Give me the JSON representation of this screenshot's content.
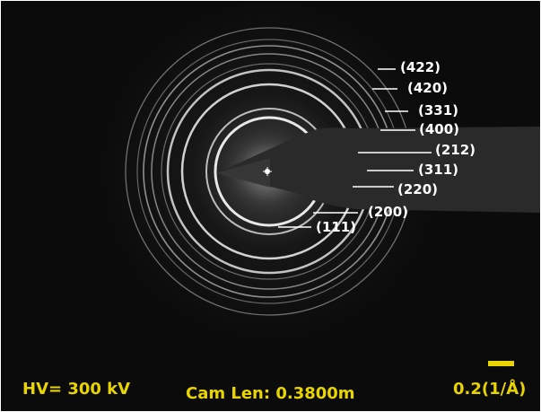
{
  "figure": {
    "type": "electron diffraction pattern (SAED rings)",
    "colors": {
      "background": "#0b0b0b",
      "rings": "#e9e9e9",
      "labels": "#ffffff",
      "info_text": "#e8d400",
      "scale_bar": "#e8d400",
      "beam_stop": "#2a2a2a"
    },
    "ring_labels": [
      {
        "hkl": "(422)"
      },
      {
        "hkl": "(420)"
      },
      {
        "hkl": "(331)"
      },
      {
        "hkl": "(400)"
      },
      {
        "hkl": "(212)"
      },
      {
        "hkl": "(311)"
      },
      {
        "hkl": "(220)"
      },
      {
        "hkl": "(200)"
      },
      {
        "hkl": "(111)"
      }
    ],
    "high_voltage": "HV= 300 kV",
    "camera_length": "Cam Len: 0.3800m",
    "scale_label": "0.2(1/Å)"
  }
}
